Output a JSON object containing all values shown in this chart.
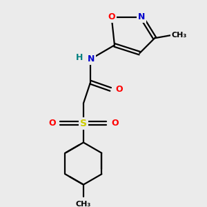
{
  "bg_color": "#ebebeb",
  "bond_color": "#000000",
  "atom_colors": {
    "N": "#0000cc",
    "O": "#ff0000",
    "S": "#cccc00",
    "H": "#008080",
    "C": "#000000"
  },
  "figsize": [
    3.0,
    3.0
  ],
  "dpi": 100
}
